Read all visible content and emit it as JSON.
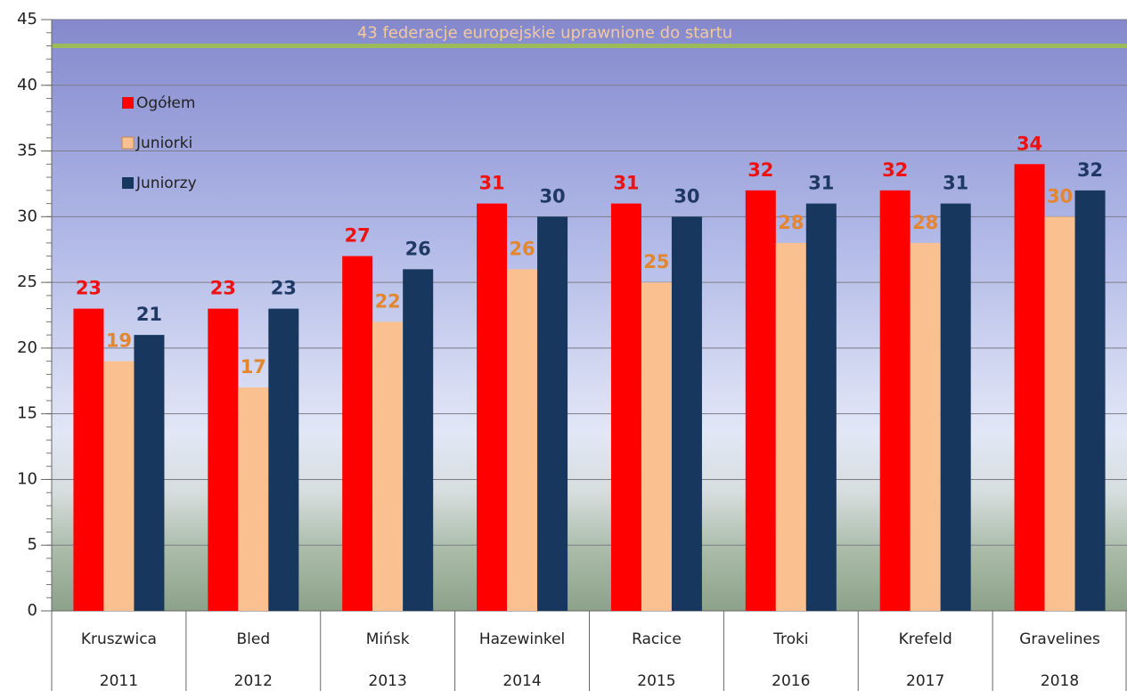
{
  "chart_data": {
    "type": "bar",
    "categories": [
      [
        "Kruszwica",
        "2011"
      ],
      [
        "Bled",
        "2012"
      ],
      [
        "Mińsk",
        "2013"
      ],
      [
        "Hazewinkel",
        "2014"
      ],
      [
        "Racice",
        "2015"
      ],
      [
        "Troki",
        "2016"
      ],
      [
        "Krefeld",
        "2017"
      ],
      [
        "Gravelines",
        "2018"
      ]
    ],
    "series": [
      {
        "name": "Ogółem",
        "color": "#ff0000",
        "label_color": "#ee1111",
        "values": [
          23,
          23,
          27,
          31,
          31,
          32,
          32,
          34
        ]
      },
      {
        "name": "Juniorki",
        "color": "#fac090",
        "label_color": "#e3862f",
        "values": [
          19,
          17,
          22,
          26,
          25,
          28,
          28,
          30
        ]
      },
      {
        "name": "Juniorzy",
        "color": "#17375e",
        "label_color": "#1f3864",
        "values": [
          21,
          23,
          26,
          30,
          30,
          31,
          31,
          32
        ]
      }
    ],
    "reference_line": {
      "value": 43,
      "label": "43 federacje europejskie uprawnione do startu",
      "color": "#9bbb59"
    },
    "ylim": [
      0,
      45
    ],
    "yticks": [
      0,
      5,
      10,
      15,
      20,
      25,
      30,
      35,
      40,
      45
    ],
    "minor_tick_step": 1,
    "grid": true,
    "legend": "upper left"
  }
}
